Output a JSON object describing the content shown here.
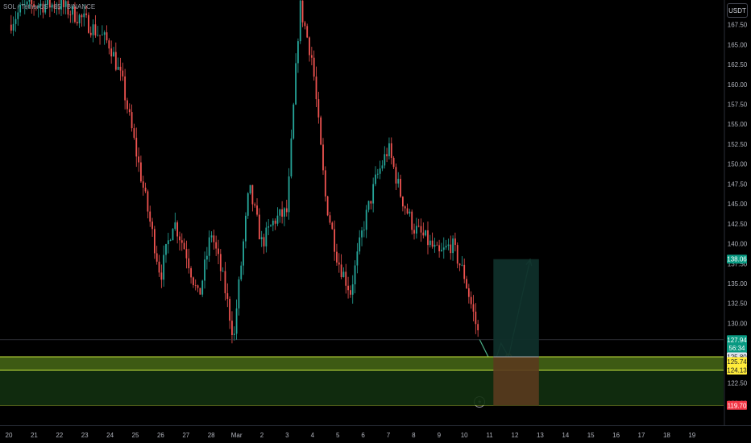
{
  "header": {
    "symbol": "SOL / TetherUS · 85 · BINANCE",
    "currency_button": "USDT"
  },
  "colors": {
    "up": "#26a69a",
    "down": "#ef5350",
    "zone_fill": "#3d5a13",
    "zone_line": "#c8e63c",
    "profit_fill": "#0f2f2a",
    "loss_fill": "#5a3a1e",
    "target_tag": "#089981",
    "stop_tag": "#f23645",
    "entry_tag": "#ffeb3b",
    "arrow": "#4caf87"
  },
  "chart_data": {
    "type": "candlestick",
    "exchange": "BINANCE",
    "timeframe": "85",
    "ylim": [
      117.2,
      170.6
    ],
    "y_ticks": [
      120,
      122.5,
      125,
      127.5,
      130,
      132.5,
      135,
      137.5,
      140,
      142.5,
      145,
      147.5,
      150,
      152.5,
      155,
      157.5,
      160,
      162.5,
      165,
      167.5
    ],
    "y_tick_labels": [
      "120.00",
      "122.50",
      "125.00",
      "127.50",
      "130.00",
      "132.50",
      "135.00",
      "137.50",
      "140.00",
      "142.50",
      "145.00",
      "147.50",
      "150.00",
      "152.50",
      "155.00",
      "157.50",
      "160.00",
      "162.50",
      "165.00",
      "167.50"
    ],
    "x_ticks": [
      "20",
      "21",
      "22",
      "23",
      "24",
      "25",
      "26",
      "27",
      "28",
      "Mar",
      "2",
      "3",
      "4",
      "5",
      "6",
      "7",
      "8",
      "9",
      "10",
      "11",
      "12",
      "13",
      "14",
      "15",
      "16",
      "17",
      "18",
      "19"
    ],
    "path": [
      [
        0,
        167.5
      ],
      [
        0.5,
        169.5
      ],
      [
        1,
        170
      ],
      [
        2,
        170
      ],
      [
        3,
        168
      ],
      [
        4,
        165
      ],
      [
        4.5,
        160
      ],
      [
        5,
        152
      ],
      [
        5.5,
        144
      ],
      [
        6,
        136
      ],
      [
        6.5,
        143
      ],
      [
        7,
        139
      ],
      [
        7.5,
        133
      ],
      [
        8,
        141.5
      ],
      [
        8.5,
        135
      ],
      [
        8.9,
        128
      ],
      [
        9,
        132
      ],
      [
        9.5,
        147
      ],
      [
        10,
        140
      ],
      [
        10.5,
        143
      ],
      [
        11,
        144
      ],
      [
        11.5,
        170
      ],
      [
        12,
        163
      ],
      [
        12.5,
        146
      ],
      [
        13,
        138
      ],
      [
        13.5,
        134
      ],
      [
        14,
        142
      ],
      [
        14.5,
        148
      ],
      [
        15,
        152
      ],
      [
        15.5,
        146
      ],
      [
        16,
        142
      ],
      [
        16.5,
        140.5
      ],
      [
        17,
        138.5
      ],
      [
        17.5,
        140
      ],
      [
        18,
        136
      ],
      [
        18.6,
        128
      ]
    ],
    "support_zone": {
      "top": 125.8,
      "bottom": 124.13,
      "mid_line": 125.74
    },
    "lower_zone": {
      "top": 124.13,
      "bottom": 119.7
    },
    "position": {
      "type": "long",
      "entry": 125.8,
      "target": 138.06,
      "stop": 119.7,
      "start_x": 19.15,
      "end_x": 20.95
    },
    "projection": [
      [
        18.6,
        128
      ],
      [
        19.15,
        124.5
      ],
      [
        19.45,
        127.5
      ],
      [
        19.75,
        125.8
      ],
      [
        20.6,
        138
      ]
    ],
    "entry_marker_x": 19.75,
    "price_tags": {
      "target": "138.06",
      "last_price": "127.94",
      "countdown": "56:34",
      "entry": "125.80",
      "zone_mid": "125.74",
      "zone_bottom": "124.13",
      "stop": "119.70"
    },
    "annotations": {
      "lightning_x": 18.6
    }
  }
}
